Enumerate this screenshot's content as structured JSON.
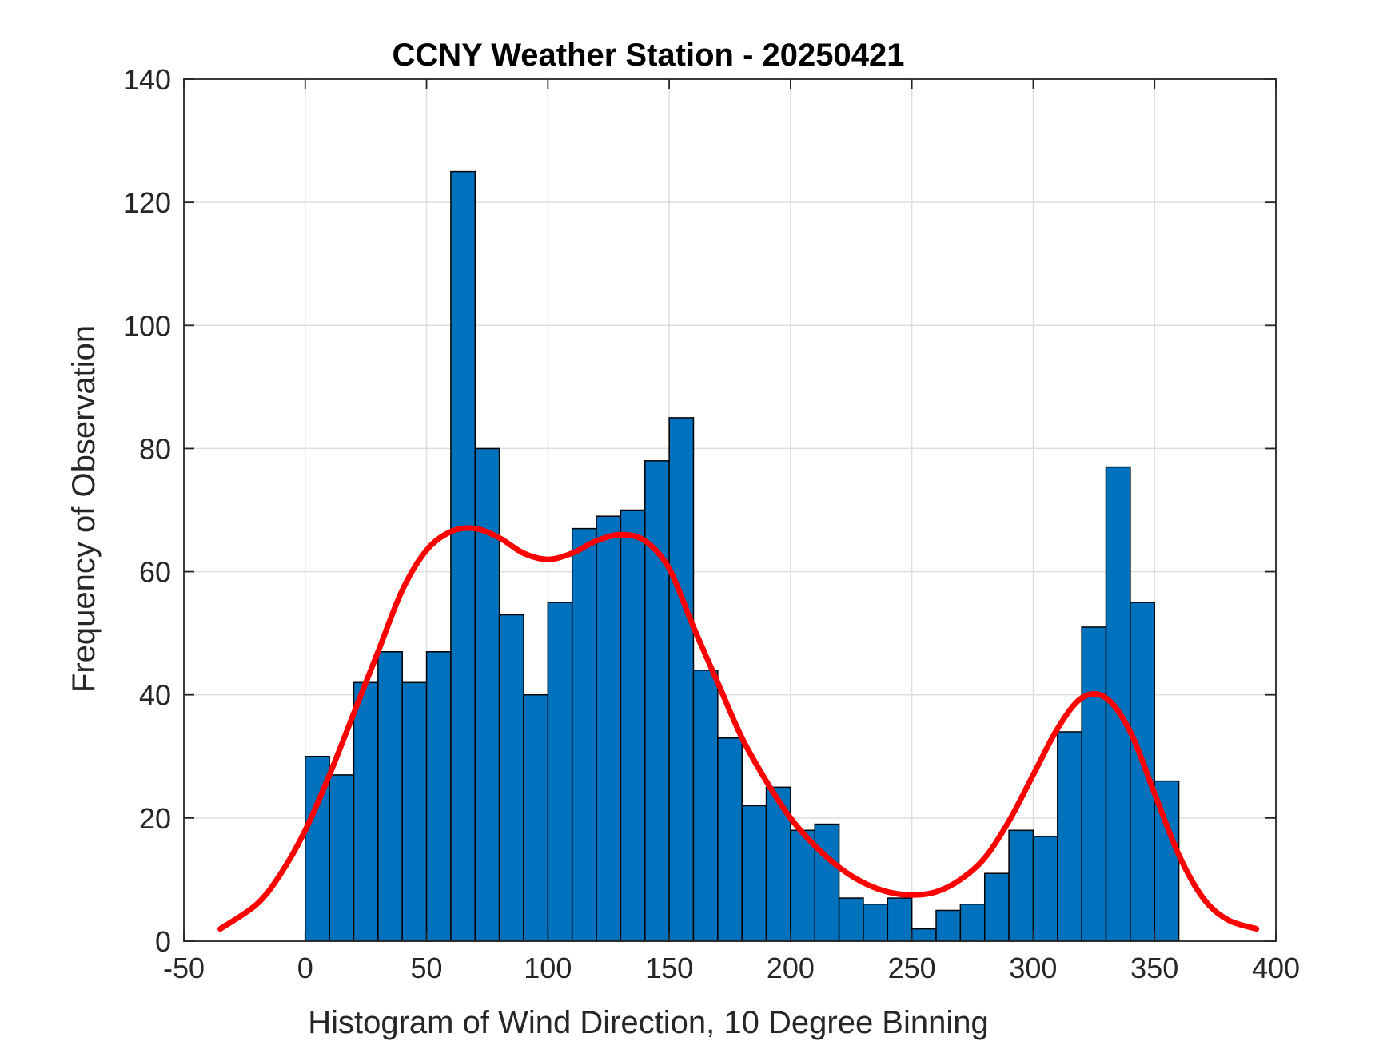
{
  "chart_data": {
    "type": "bar",
    "title": "CCNY Weather Station - 20250421",
    "xlabel": "Histogram of Wind Direction, 10 Degree Binning",
    "ylabel": "Frequency of Observation",
    "xlim": [
      -50,
      400
    ],
    "ylim": [
      0,
      140
    ],
    "xticks": [
      -50,
      0,
      50,
      100,
      150,
      200,
      250,
      300,
      350,
      400
    ],
    "yticks": [
      0,
      20,
      40,
      60,
      80,
      100,
      120,
      140
    ],
    "xtick_labels": [
      "-50",
      "0",
      "50",
      "100",
      "150",
      "200",
      "250",
      "300",
      "350",
      "400"
    ],
    "ytick_labels": [
      "0",
      "20",
      "40",
      "60",
      "80",
      "100",
      "120",
      "140"
    ],
    "grid": true,
    "bin_width": 10,
    "bin_start": 0,
    "bin_end": 360,
    "values": [
      30,
      27,
      42,
      47,
      42,
      47,
      125,
      80,
      53,
      40,
      55,
      67,
      69,
      70,
      78,
      85,
      44,
      33,
      22,
      25,
      18,
      19,
      7,
      6,
      7,
      2,
      5,
      6,
      11,
      18,
      17,
      34,
      51,
      77,
      55,
      26
    ],
    "bar_color": "#0072BD",
    "curve": {
      "color": "#FF0000",
      "x": [
        -35,
        -20,
        -10,
        0,
        10,
        20,
        30,
        40,
        50,
        60,
        70,
        80,
        90,
        100,
        110,
        120,
        130,
        140,
        150,
        160,
        170,
        180,
        190,
        200,
        210,
        220,
        230,
        240,
        250,
        260,
        270,
        280,
        290,
        300,
        310,
        320,
        330,
        340,
        350,
        360,
        370,
        380,
        392
      ],
      "y": [
        2,
        6,
        11,
        18,
        27,
        37,
        47,
        57,
        63.5,
        66.5,
        67,
        65.5,
        63,
        62,
        63,
        65,
        66,
        65,
        60.5,
        51,
        42,
        33,
        26,
        20,
        15.5,
        12,
        9.5,
        8,
        7.5,
        8,
        10,
        13.5,
        19.5,
        27,
        34.5,
        39.5,
        39.5,
        34,
        24,
        14,
        7,
        3.5,
        2
      ]
    }
  }
}
